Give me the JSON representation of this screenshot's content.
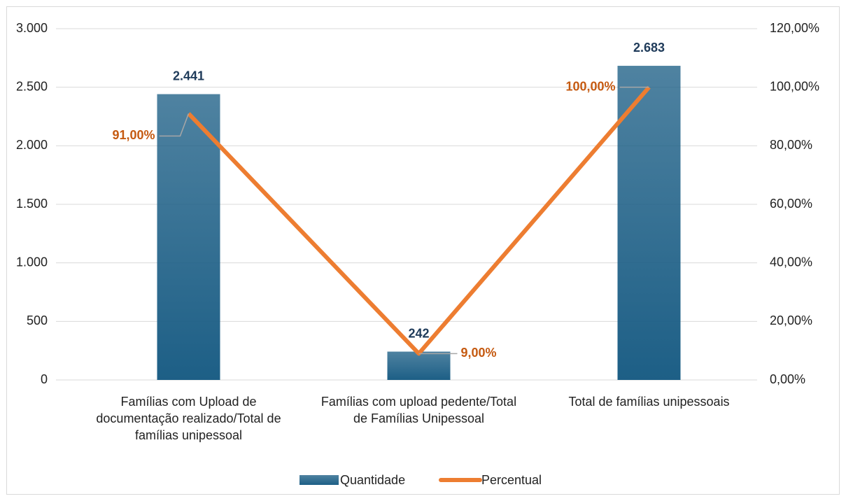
{
  "chart_data": {
    "type": "bar",
    "categories": [
      "Famílias com Upload de documentação realizado/Total de famílias unipessoal",
      "Famílias com upload pedente/Total de Famílias Unipessoal",
      "Total de famílias unipessoais"
    ],
    "series": [
      {
        "name": "Quantidade",
        "type": "bar",
        "color": "#1d5f86",
        "values": [
          2441,
          242,
          2683
        ],
        "value_labels": [
          "2.441",
          "242",
          "2.683"
        ]
      },
      {
        "name": "Percentual",
        "type": "line",
        "axis": "y2",
        "color": "#ed7d31",
        "values": [
          91,
          9,
          100
        ],
        "value_labels": [
          "91,00%",
          "9,00%",
          "100,00%"
        ]
      }
    ],
    "ylim": [
      0,
      3000
    ],
    "yticks": [
      0,
      500,
      {
        "value": 1000,
        "label": "1.000"
      },
      {
        "value": 1500,
        "label": "1.500"
      },
      {
        "value": 2000,
        "label": "2.000"
      },
      {
        "value": 2500,
        "label": "2.500"
      },
      {
        "value": 3000,
        "label": "3.000"
      }
    ],
    "y2lim": [
      0,
      120
    ],
    "y2ticks": [
      {
        "value": 0,
        "label": "0,00%"
      },
      {
        "value": 20,
        "label": "20,00%"
      },
      {
        "value": 40,
        "label": "40,00%"
      },
      {
        "value": 60,
        "label": "60,00%"
      },
      {
        "value": 80,
        "label": "80,00%"
      },
      {
        "value": 100,
        "label": "100,00%"
      },
      {
        "value": 120,
        "label": "120,00%"
      }
    ],
    "grid": true,
    "legend": "bottom"
  }
}
